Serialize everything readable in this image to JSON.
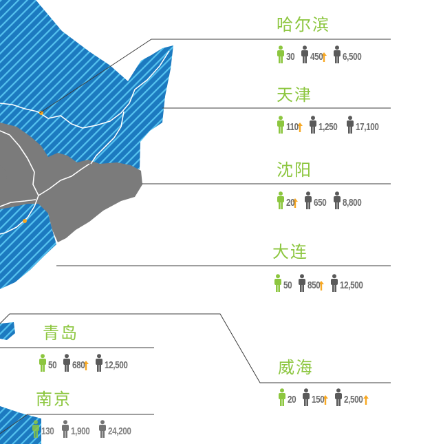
{
  "colors": {
    "map_blue": "#1c7ac0",
    "map_stripe": "#55c2ef",
    "map_gray": "#7b7b7b",
    "accent_green": "#8cc63f",
    "arrow_orange": "#f7a823",
    "person_gray": "#5a5a5a",
    "text_gray": "#6b6b6b"
  },
  "cities": [
    {
      "name": "哈尔滨",
      "stats": [
        {
          "icon": "green-person-icon",
          "value": "30",
          "trend": ""
        },
        {
          "icon": "gray-person-icon",
          "value": "450",
          "trend": "up"
        },
        {
          "icon": "gray-person-icon",
          "value": "6,500",
          "trend": ""
        }
      ]
    },
    {
      "name": "天津",
      "stats": [
        {
          "icon": "green-person-icon",
          "value": "110",
          "trend": "up"
        },
        {
          "icon": "gray-person-icon",
          "value": "1,250",
          "trend": ""
        },
        {
          "icon": "gray-person-icon",
          "value": "17,100",
          "trend": ""
        }
      ]
    },
    {
      "name": "沈阳",
      "stats": [
        {
          "icon": "green-person-icon",
          "value": "20",
          "trend": "up"
        },
        {
          "icon": "gray-person-icon",
          "value": "650",
          "trend": ""
        },
        {
          "icon": "gray-person-icon",
          "value": "8,800",
          "trend": ""
        }
      ]
    },
    {
      "name": "大连",
      "stats": [
        {
          "icon": "green-person-icon",
          "value": "50",
          "trend": ""
        },
        {
          "icon": "gray-person-icon",
          "value": "850",
          "trend": "up"
        },
        {
          "icon": "gray-person-icon",
          "value": "12,500",
          "trend": ""
        }
      ]
    },
    {
      "name": "青岛",
      "stats": [
        {
          "icon": "green-person-icon",
          "value": "50",
          "trend": ""
        },
        {
          "icon": "gray-person-icon",
          "value": "680",
          "trend": "up"
        },
        {
          "icon": "gray-person-icon",
          "value": "12,500",
          "trend": ""
        }
      ]
    },
    {
      "name": "威海",
      "stats": [
        {
          "icon": "green-person-icon",
          "value": "20",
          "trend": ""
        },
        {
          "icon": "gray-person-icon",
          "value": "150",
          "trend": "up"
        },
        {
          "icon": "gray-person-icon",
          "value": "2,500",
          "trend": "up"
        }
      ]
    },
    {
      "name": "南京",
      "stats": [
        {
          "icon": "green-person-icon",
          "value": "130",
          "trend": ""
        },
        {
          "icon": "gray-person-icon",
          "value": "1,900",
          "trend": ""
        },
        {
          "icon": "gray-person-icon",
          "value": "24,200",
          "trend": ""
        }
      ]
    }
  ]
}
